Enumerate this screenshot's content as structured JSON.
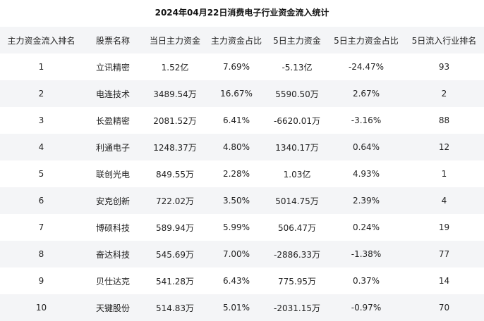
{
  "title": "2024年04月22日消费电子行业资金流入统计",
  "columns": [
    "主力资金流入排名",
    "股票名称",
    "当日主力资金",
    "主力资金占比",
    "5日主力资金",
    "5日主力资金占比",
    "5日流入行业排名"
  ],
  "rows": [
    [
      "1",
      "立讯精密",
      "1.52亿",
      "7.69%",
      "-5.13亿",
      "-24.47%",
      "93"
    ],
    [
      "2",
      "电连技术",
      "3489.54万",
      "16.67%",
      "5590.50万",
      "2.67%",
      "2"
    ],
    [
      "3",
      "长盈精密",
      "2081.52万",
      "6.41%",
      "-6620.01万",
      "-3.16%",
      "88"
    ],
    [
      "4",
      "利通电子",
      "1248.37万",
      "4.80%",
      "1340.17万",
      "0.64%",
      "12"
    ],
    [
      "5",
      "联创光电",
      "849.55万",
      "2.28%",
      "1.03亿",
      "4.93%",
      "1"
    ],
    [
      "6",
      "安克创新",
      "722.02万",
      "3.50%",
      "5014.75万",
      "2.39%",
      "4"
    ],
    [
      "7",
      "博硕科技",
      "589.94万",
      "5.99%",
      "506.47万",
      "0.24%",
      "19"
    ],
    [
      "8",
      "奋达科技",
      "545.69万",
      "7.00%",
      "-2886.33万",
      "-1.38%",
      "77"
    ],
    [
      "9",
      "贝仕达克",
      "541.28万",
      "6.43%",
      "775.95万",
      "0.37%",
      "14"
    ],
    [
      "10",
      "天键股份",
      "514.83万",
      "5.01%",
      "-2031.15万",
      "-0.97%",
      "70"
    ]
  ]
}
